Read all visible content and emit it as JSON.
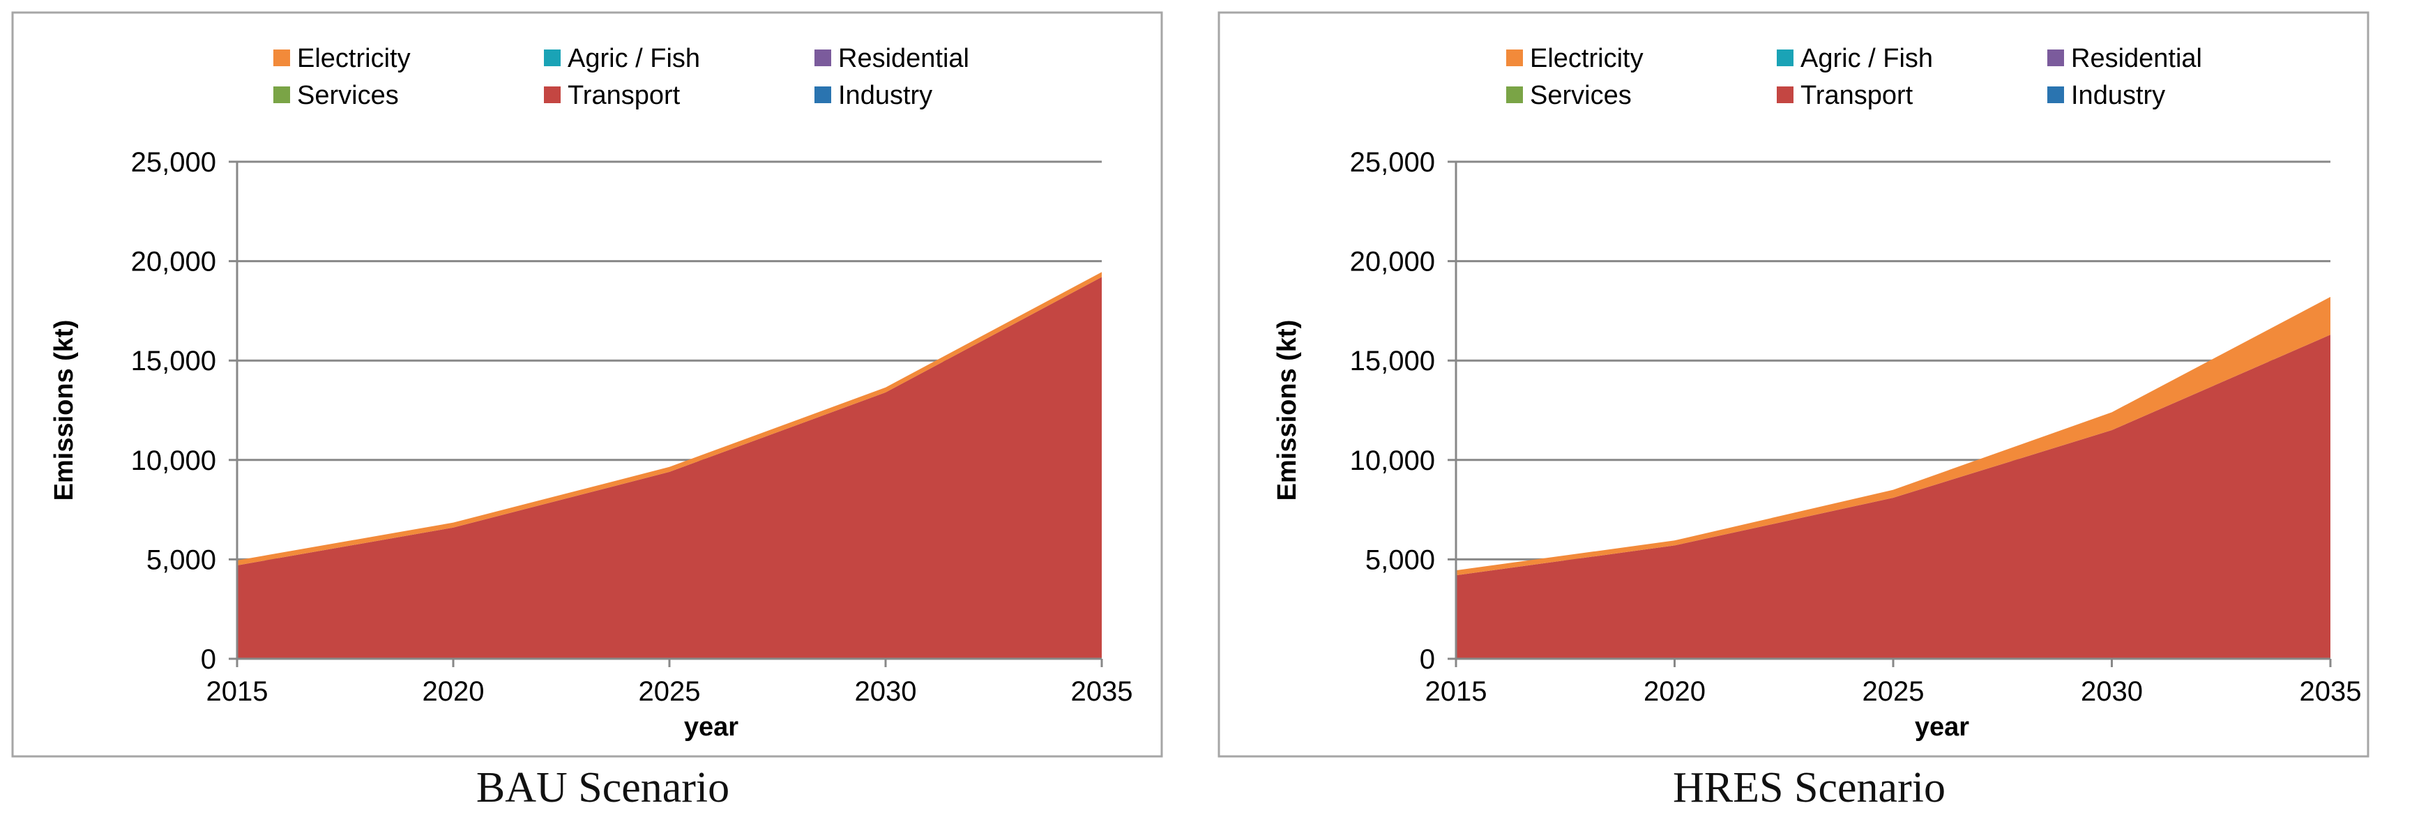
{
  "chart_data": [
    {
      "type": "area",
      "stacked": true,
      "title": "",
      "caption": "BAU Scenario",
      "xlabel": "year",
      "ylabel": "Emissions (kt)",
      "x": [
        2015,
        2020,
        2025,
        2030,
        2035
      ],
      "xticks": [
        "2015",
        "2020",
        "2025",
        "2030",
        "2035"
      ],
      "yticks": [
        "0",
        "5,000",
        "10,000",
        "15,000",
        "20,000",
        "25,000"
      ],
      "ylim": [
        0,
        25000
      ],
      "grid": true,
      "legend_position": "top",
      "series": [
        {
          "name": "Industry",
          "color": "#2a74b0",
          "values": [
            0,
            0,
            0,
            0,
            0
          ]
        },
        {
          "name": "Transport",
          "color": "#c44642",
          "values": [
            4700,
            6600,
            9400,
            13400,
            19200
          ]
        },
        {
          "name": "Services",
          "color": "#7aa446",
          "values": [
            0,
            0,
            0,
            0,
            0
          ]
        },
        {
          "name": "Residential",
          "color": "#7b5b9c",
          "values": [
            0,
            0,
            0,
            0,
            0
          ]
        },
        {
          "name": "Agric / Fish",
          "color": "#1aa3b6",
          "values": [
            0,
            0,
            0,
            0,
            0
          ]
        },
        {
          "name": "Electricity",
          "color": "#f28a3a",
          "values": [
            250,
            250,
            250,
            250,
            250
          ]
        }
      ]
    },
    {
      "type": "area",
      "stacked": true,
      "title": "",
      "caption": "HRES Scenario",
      "xlabel": "year",
      "ylabel": "Emissions (kt)",
      "x": [
        2015,
        2020,
        2025,
        2030,
        2035
      ],
      "xticks": [
        "2015",
        "2020",
        "2025",
        "2030",
        "2035"
      ],
      "yticks": [
        "0",
        "5,000",
        "10,000",
        "15,000",
        "20,000",
        "25,000"
      ],
      "ylim": [
        0,
        25000
      ],
      "grid": true,
      "legend_position": "top",
      "series": [
        {
          "name": "Industry",
          "color": "#2a74b0",
          "values": [
            0,
            0,
            0,
            0,
            0
          ]
        },
        {
          "name": "Transport",
          "color": "#c44642",
          "values": [
            4200,
            5700,
            8100,
            11500,
            16300
          ]
        },
        {
          "name": "Services",
          "color": "#7aa446",
          "values": [
            0,
            0,
            0,
            0,
            0
          ]
        },
        {
          "name": "Residential",
          "color": "#7b5b9c",
          "values": [
            0,
            0,
            0,
            0,
            0
          ]
        },
        {
          "name": "Agric / Fish",
          "color": "#1aa3b6",
          "values": [
            0,
            0,
            0,
            0,
            0
          ]
        },
        {
          "name": "Electricity",
          "color": "#f28a3a",
          "values": [
            250,
            250,
            400,
            900,
            1900
          ]
        }
      ]
    }
  ],
  "legend_order": [
    "Electricity",
    "Agric / Fish",
    "Residential",
    "Services",
    "Transport",
    "Industry"
  ]
}
